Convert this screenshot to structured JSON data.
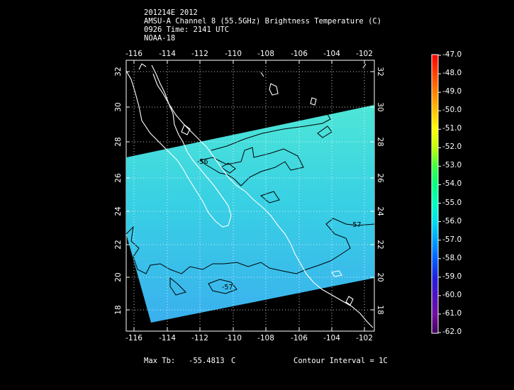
{
  "header": {
    "line1": "201214E 2012",
    "line2": "AMSU-A Channel 8 (55.5GHz) Brightness Temperature (C)",
    "line3": "0926 Time: 2141 UTC",
    "line4": "NOAA-18"
  },
  "axes": {
    "lon_ticks": [
      "-116",
      "-114",
      "-112",
      "-110",
      "-108",
      "-106",
      "-104",
      "-102"
    ],
    "lat_ticks": [
      "32",
      "30",
      "28",
      "26",
      "24",
      "22",
      "20",
      "18"
    ]
  },
  "contour_labels": [
    "-56",
    "-57",
    "-57"
  ],
  "colorbar": {
    "labels": [
      "-47.0",
      "-48.0",
      "-49.0",
      "-50.0",
      "-51.0",
      "-52.0",
      "-53.0",
      "-54.0",
      "-55.0",
      "-56.0",
      "-57.0",
      "-58.0",
      "-59.0",
      "-60.0",
      "-61.0",
      "-62.0"
    ],
    "colors": [
      "#ff0000",
      "#ff4000",
      "#ff8000",
      "#ffc000",
      "#ffff00",
      "#c0ff00",
      "#40ff40",
      "#00ff80",
      "#00ffc0",
      "#00e0f0",
      "#00a0ff",
      "#0060ff",
      "#2020e0",
      "#5010c0",
      "#7010a0",
      "#400060"
    ]
  },
  "footer": {
    "max_tb_label": "Max Tb:",
    "max_tb_value": "-55.4813",
    "max_tb_unit": "C",
    "contour_interval": "Contour Interval = 1C"
  },
  "colors": {
    "swath_top": "#4ee6d6",
    "swath_mid": "#38d0e4",
    "swath_bottom": "#3ab0ee",
    "coast": "#ffffff",
    "contour": "#000000"
  }
}
